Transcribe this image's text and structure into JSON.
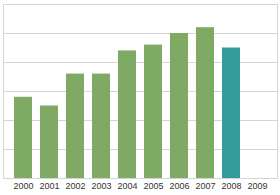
{
  "chart_data": {
    "type": "bar",
    "categories": [
      "2000",
      "2001",
      "2002",
      "2003",
      "2004",
      "2005",
      "2006",
      "2007",
      "2008",
      "2009"
    ],
    "values": [
      2.8,
      2.5,
      3.6,
      3.6,
      4.4,
      4.6,
      5.0,
      5.2,
      4.5,
      null
    ],
    "colors": [
      "#7faa63",
      "#7faa63",
      "#7faa63",
      "#7faa63",
      "#7faa63",
      "#7faa63",
      "#7faa63",
      "#7faa63",
      "#339b99",
      "#7faa63"
    ],
    "ylim": [
      0,
      6
    ],
    "yticks": [
      0,
      1,
      2,
      3,
      4,
      5,
      6
    ],
    "grid": true,
    "tick_labels": "x"
  }
}
